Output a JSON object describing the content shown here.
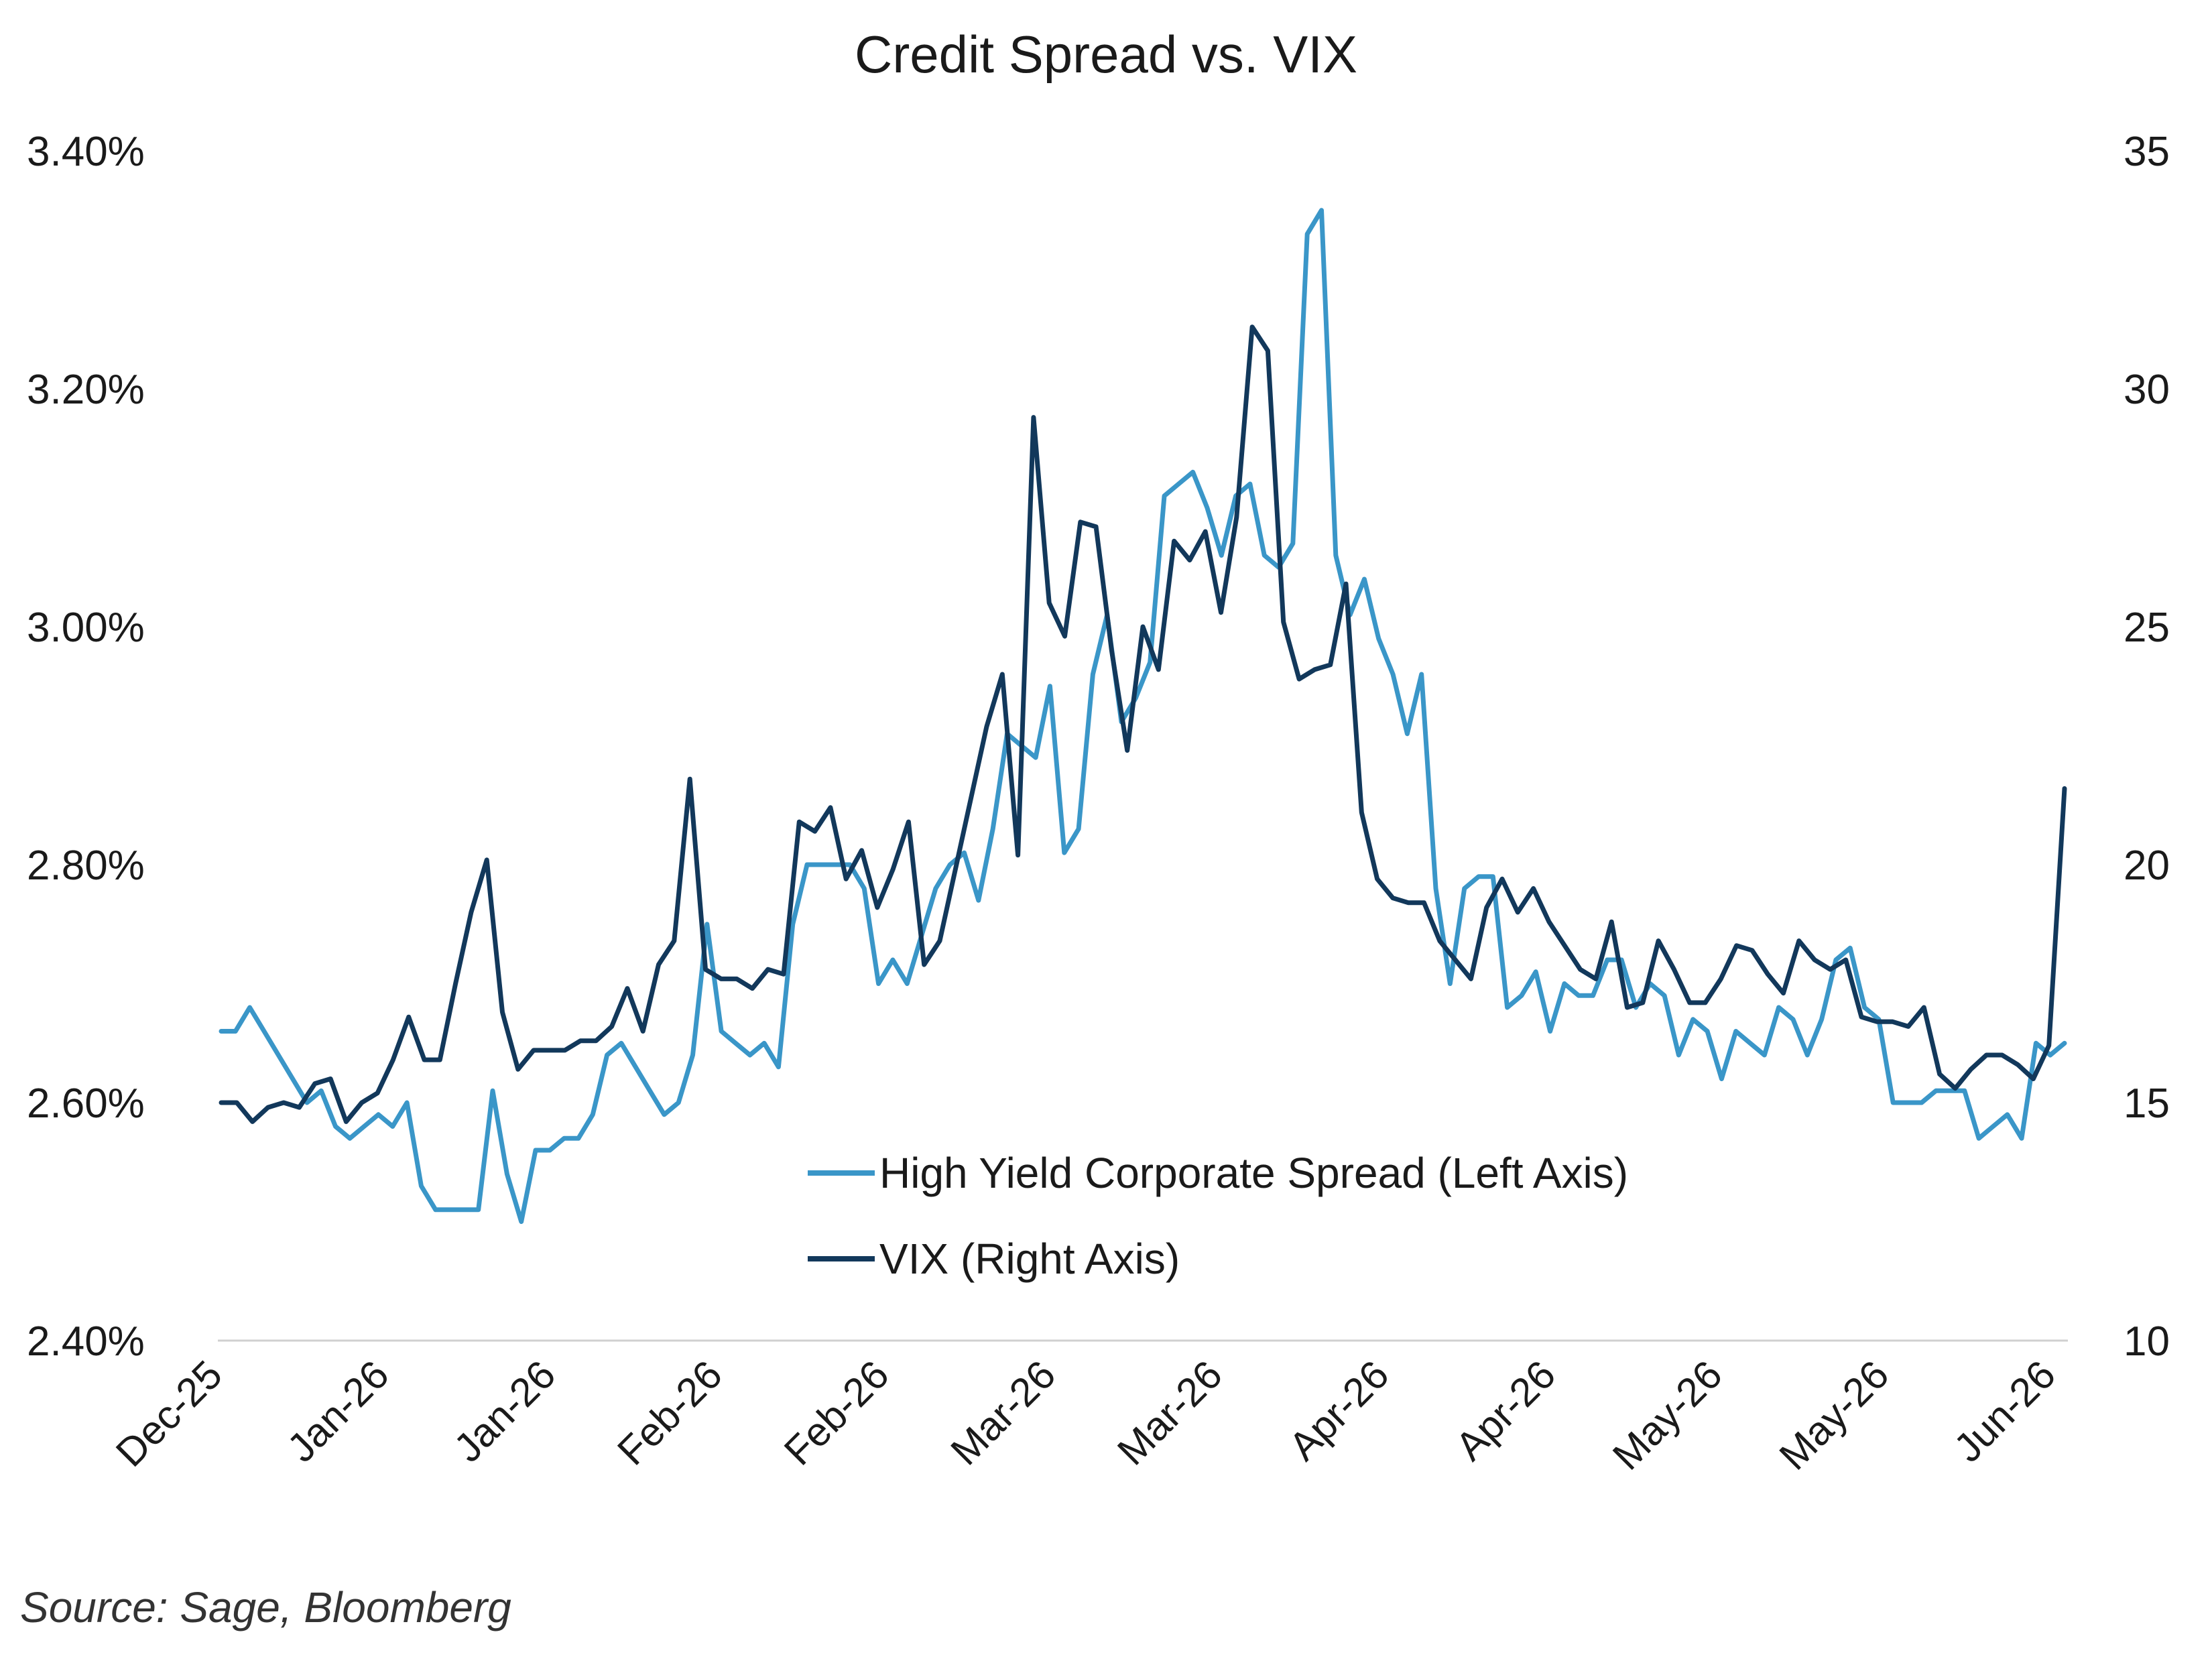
{
  "chart_data": {
    "type": "line",
    "title": "Credit Spread vs. VIX",
    "source": "Source: Sage, Bloomberg",
    "x_tick_labels": [
      "Dec-25",
      "Jan-26",
      "Jan-26",
      "Feb-26",
      "Feb-26",
      "Mar-26",
      "Mar-26",
      "Apr-26",
      "Apr-26",
      "May-26",
      "May-26",
      "Jun-26"
    ],
    "y_left": {
      "ticks": [
        "2.40%",
        "2.60%",
        "2.80%",
        "3.00%",
        "3.20%",
        "3.40%"
      ],
      "range": [
        2.4,
        3.4
      ],
      "unit": "%"
    },
    "y_right": {
      "ticks": [
        "10",
        "15",
        "20",
        "25",
        "30",
        "35"
      ],
      "range": [
        10,
        35
      ]
    },
    "grid": false,
    "legend_position": "center-bottom",
    "series": [
      {
        "name": "High Yield Corporate Spread (Left Axis)",
        "axis": "left",
        "color": "#3a96c8",
        "values": [
          2.66,
          2.66,
          2.68,
          2.66,
          2.64,
          2.62,
          2.6,
          2.61,
          2.58,
          2.57,
          2.58,
          2.59,
          2.58,
          2.6,
          2.53,
          2.51,
          2.51,
          2.51,
          2.51,
          2.61,
          2.54,
          2.5,
          2.56,
          2.56,
          2.57,
          2.57,
          2.59,
          2.64,
          2.65,
          2.63,
          2.61,
          2.59,
          2.6,
          2.64,
          2.75,
          2.66,
          2.65,
          2.64,
          2.65,
          2.63,
          2.75,
          2.8,
          2.8,
          2.8,
          2.8,
          2.78,
          2.7,
          2.72,
          2.7,
          2.74,
          2.78,
          2.8,
          2.81,
          2.77,
          2.83,
          2.91,
          2.9,
          2.89,
          2.95,
          2.81,
          2.83,
          2.96,
          3.01,
          2.92,
          2.94,
          2.97,
          3.11,
          3.12,
          3.13,
          3.1,
          3.06,
          3.11,
          3.12,
          3.06,
          3.05,
          3.07,
          3.33,
          3.35,
          3.06,
          3.01,
          3.04,
          2.99,
          2.96,
          2.91,
          2.96,
          2.78,
          2.7,
          2.78,
          2.79,
          2.79,
          2.68,
          2.69,
          2.71,
          2.66,
          2.7,
          2.69,
          2.69,
          2.72,
          2.72,
          2.68,
          2.7,
          2.69,
          2.64,
          2.67,
          2.66,
          2.62,
          2.66,
          2.65,
          2.64,
          2.68,
          2.67,
          2.64,
          2.67,
          2.72,
          2.73,
          2.68,
          2.67,
          2.6,
          2.6,
          2.6,
          2.61,
          2.61,
          2.61,
          2.57,
          2.58,
          2.59,
          2.57,
          2.65,
          2.64,
          2.65
        ]
      },
      {
        "name": "VIX (Right Axis)",
        "axis": "right",
        "color": "#12385b",
        "values": [
          15.0,
          15.0,
          14.6,
          14.9,
          15.0,
          14.9,
          15.4,
          15.5,
          14.6,
          15.0,
          15.2,
          15.9,
          16.8,
          15.9,
          15.9,
          17.5,
          19.0,
          20.1,
          16.9,
          15.7,
          16.1,
          16.1,
          16.1,
          16.3,
          16.3,
          16.6,
          17.4,
          16.5,
          17.9,
          18.4,
          21.8,
          17.8,
          17.6,
          17.6,
          17.4,
          17.8,
          17.7,
          20.9,
          20.7,
          21.2,
          19.7,
          20.3,
          19.1,
          19.9,
          20.9,
          17.9,
          18.4,
          19.9,
          21.4,
          22.9,
          24.0,
          20.2,
          29.4,
          25.5,
          24.8,
          27.2,
          27.1,
          24.5,
          22.4,
          25.0,
          24.1,
          26.8,
          26.4,
          27.0,
          25.3,
          27.3,
          31.3,
          30.8,
          25.1,
          23.9,
          24.1,
          24.2,
          25.9,
          21.1,
          19.7,
          19.3,
          19.2,
          19.2,
          18.4,
          18.0,
          17.6,
          19.1,
          19.7,
          19.0,
          19.5,
          18.8,
          18.3,
          17.8,
          17.6,
          18.8,
          17.0,
          17.1,
          18.4,
          17.8,
          17.1,
          17.1,
          17.6,
          18.3,
          18.2,
          17.7,
          17.3,
          18.4,
          18.0,
          17.8,
          18.0,
          16.8,
          16.7,
          16.7,
          16.6,
          17.0,
          15.6,
          15.3,
          15.7,
          16.0,
          16.0,
          15.8,
          15.5,
          16.2,
          21.6
        ]
      }
    ]
  }
}
